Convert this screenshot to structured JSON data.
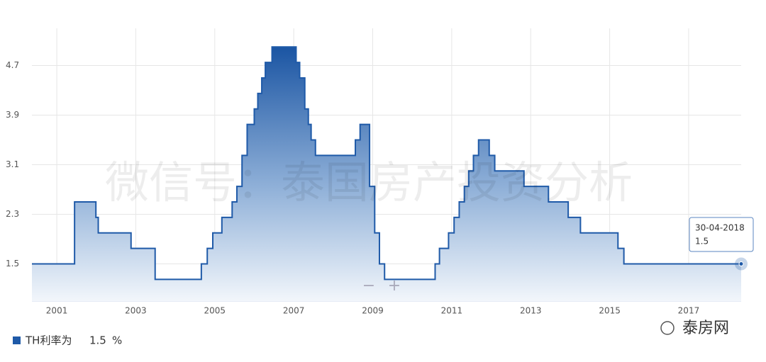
{
  "chart_data": {
    "type": "step-area",
    "x": [
      2000.37,
      2001.45,
      2001.99,
      2002.05,
      2002.88,
      2003.49,
      2004.66,
      2004.81,
      2004.95,
      2005.18,
      2005.44,
      2005.56,
      2005.69,
      2005.82,
      2006.0,
      2006.09,
      2006.19,
      2006.28,
      2006.45,
      2007.06,
      2007.15,
      2007.28,
      2007.37,
      2007.44,
      2007.55,
      2008.56,
      2008.68,
      2008.92,
      2009.05,
      2009.17,
      2009.3,
      2010.58,
      2010.69,
      2010.92,
      2011.06,
      2011.19,
      2011.32,
      2011.43,
      2011.55,
      2011.68,
      2011.95,
      2012.09,
      2012.83,
      2013.45,
      2013.95,
      2014.26,
      2015.21,
      2015.36,
      2018.33
    ],
    "series": [
      {
        "name": "TH利率为",
        "color": "#1f5aa8",
        "values": [
          1.5,
          2.5,
          2.25,
          2.0,
          1.75,
          1.25,
          1.5,
          1.75,
          2.0,
          2.25,
          2.5,
          2.75,
          3.25,
          3.75,
          4.0,
          4.25,
          4.5,
          4.75,
          5.0,
          4.75,
          4.5,
          4.0,
          3.75,
          3.5,
          3.25,
          3.5,
          3.75,
          2.75,
          2.0,
          1.5,
          1.25,
          1.5,
          1.75,
          2.0,
          2.25,
          2.5,
          2.75,
          3.0,
          3.25,
          3.5,
          3.25,
          3.0,
          2.75,
          2.5,
          2.25,
          2.0,
          1.75,
          1.5,
          1.5
        ]
      }
    ],
    "xlim": [
      2000.37,
      2018.33
    ],
    "xticks": [
      2001,
      2003,
      2005,
      2007,
      2009,
      2011,
      2013,
      2015,
      2017
    ],
    "ylim": [
      0.9,
      5.3
    ],
    "yticks": [
      1.5,
      2.3,
      3.1,
      3.9,
      4.7
    ],
    "grid": true,
    "tooltip": {
      "date": "30-04-2018",
      "value": 1.5
    },
    "legend": {
      "value": 1.5,
      "unit": "%"
    },
    "zoom_controls": [
      "−",
      "+"
    ],
    "watermark": "微信号：泰国房产投资分析",
    "logo": "泰房网"
  }
}
